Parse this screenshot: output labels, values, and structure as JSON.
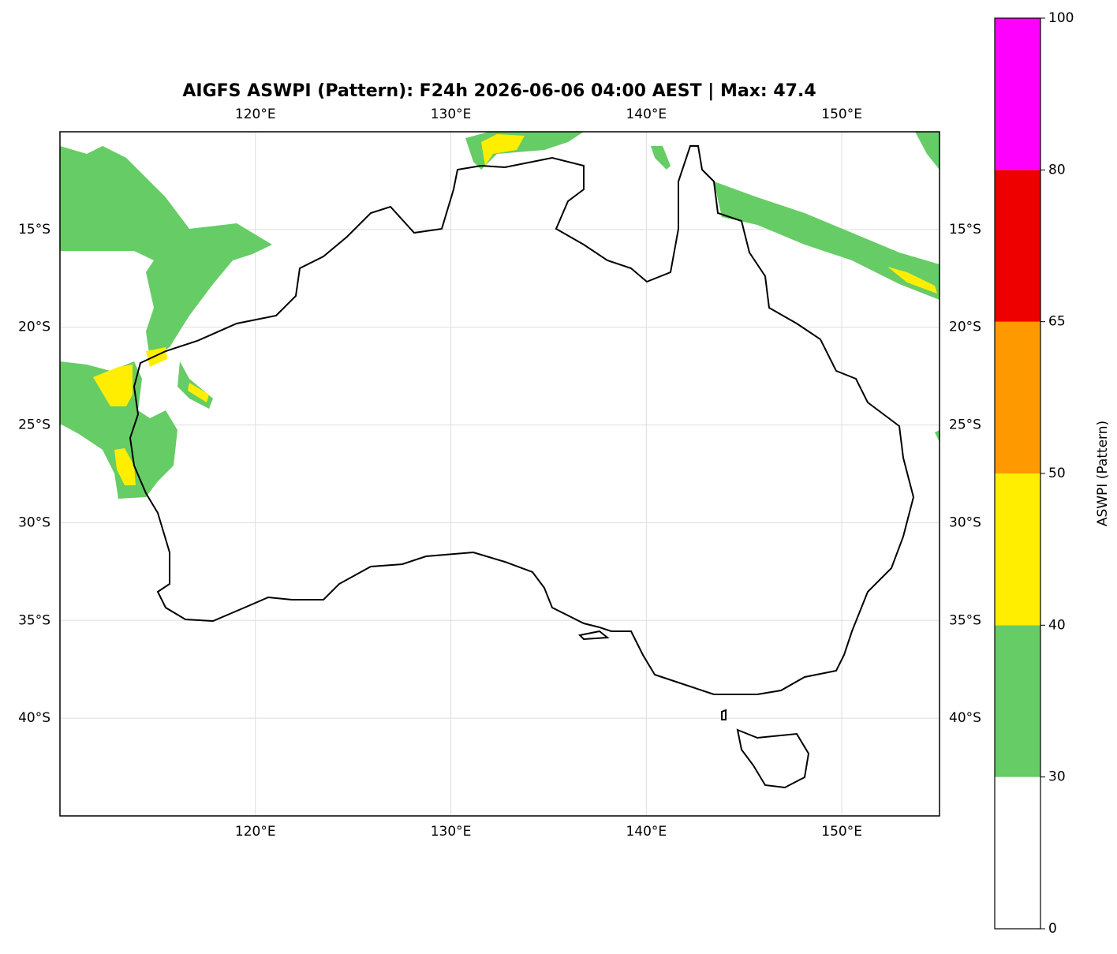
{
  "title": "AIGFS ASWPI (Pattern): F24h 2026-06-06 04:00 AEST | Max: 47.4",
  "map": {
    "lon_range": [
      110,
      155
    ],
    "lat_range": [
      -45,
      -10
    ],
    "grid": true,
    "lon_ticks": [
      {
        "value": 120,
        "label": "120°E"
      },
      {
        "value": 130,
        "label": "130°E"
      },
      {
        "value": 140,
        "label": "140°E"
      },
      {
        "value": 150,
        "label": "150°E"
      }
    ],
    "lat_ticks": [
      {
        "value": -15,
        "label": "15°S"
      },
      {
        "value": -20,
        "label": "20°S"
      },
      {
        "value": -25,
        "label": "25°S"
      },
      {
        "value": -30,
        "label": "30°S"
      },
      {
        "value": -35,
        "label": "35°S"
      },
      {
        "value": -40,
        "label": "40°S"
      }
    ]
  },
  "colorbar": {
    "label": "ASWPI (Pattern)",
    "levels": [
      0,
      30,
      40,
      50,
      65,
      80,
      100
    ],
    "colors": [
      "#ffffff",
      "#66cc66",
      "#ffee00",
      "#ff9900",
      "#ee0000",
      "#ff00ff"
    ]
  }
}
